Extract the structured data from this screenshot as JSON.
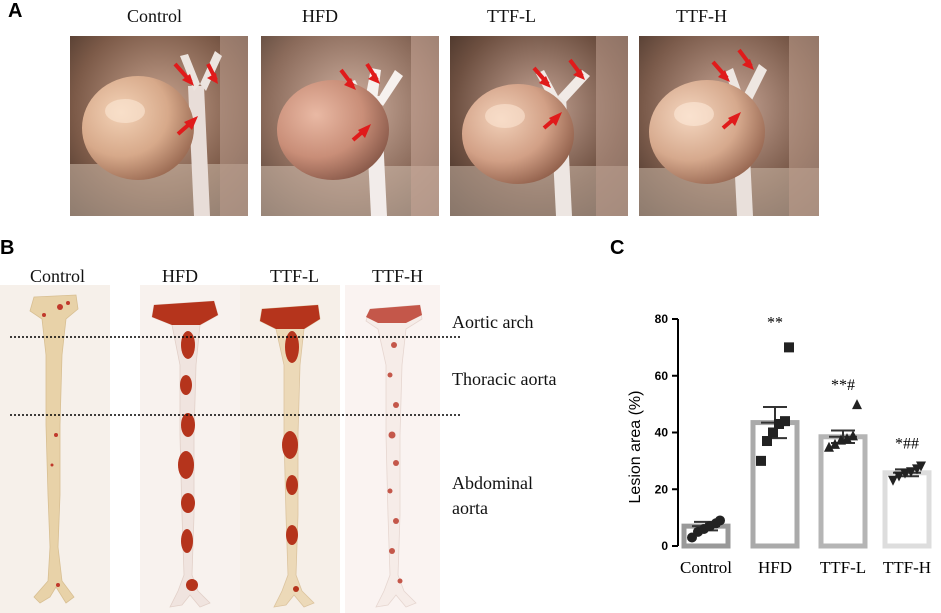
{
  "panels": {
    "a": {
      "letter": "A",
      "groups": [
        "Control",
        "HFD",
        "TTF-L",
        "TTF-H"
      ]
    },
    "b": {
      "letter": "B",
      "groups": [
        "Control",
        "HFD",
        "TTF-L",
        "TTF-H"
      ],
      "regions": {
        "arch": "Aortic arch",
        "thoracic": "Thoracic aorta",
        "abdominal_1": "Abdominal",
        "abdominal_2": "aorta"
      }
    },
    "c": {
      "letter": "C"
    }
  },
  "colors": {
    "lesion_red": "#b5341c",
    "arrow_red": "#e01b1b",
    "bar_control": "#999999",
    "bar_hfd": "#aaaaaa",
    "bar_ttfl": "#b5b5b5",
    "bar_ttfh": "#dddddd"
  },
  "chart_data": {
    "type": "bar",
    "categories": [
      "Control",
      "HFD",
      "TTF-L",
      "TTF-H"
    ],
    "values": [
      7,
      43.5,
      38.5,
      25.8
    ],
    "sem": [
      1.5,
      5.5,
      2.2,
      1.2
    ],
    "points": [
      [
        3,
        5,
        6,
        7,
        8,
        9
      ],
      [
        30,
        37,
        40,
        43,
        44,
        70
      ],
      [
        35,
        36,
        37.5,
        38,
        39,
        50
      ],
      [
        23,
        24.5,
        25.5,
        26,
        27,
        28
      ]
    ],
    "markers": [
      "circle",
      "square",
      "triangle-up",
      "triangle-down"
    ],
    "annotations": [
      "",
      "**",
      "**#",
      "*##"
    ],
    "xlabel": "",
    "ylabel": "Lesion area (%)",
    "ylim": [
      0,
      80
    ],
    "yticks": [
      0,
      20,
      40,
      60,
      80
    ]
  }
}
